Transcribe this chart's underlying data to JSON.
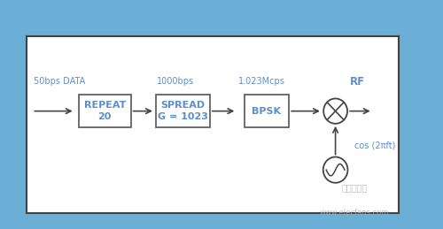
{
  "bg_outer": "#6baed6",
  "bg_inner": "#ffffff",
  "border_color": "#444444",
  "box_edge": "#555555",
  "box_fill": "#ffffff",
  "text_blue": "#5b8fc9",
  "text_dark": "#444444",
  "label_50bps": "50bps DATA",
  "label_1000bps": "1000bps",
  "label_1023Mcps": "1.023Mcps",
  "label_RF": "RF",
  "box1_line1": "REPEAT",
  "box1_line2": "20",
  "box2_line1": "SPREAD",
  "box2_line2": "G = 1023",
  "box3_line1": "BPSK",
  "cos_label": "cos (2πft)",
  "watermark1": "电子发烧网",
  "watermark2": "www.elecfans.com",
  "figsize": [
    5.0,
    2.59
  ],
  "dpi": 100
}
